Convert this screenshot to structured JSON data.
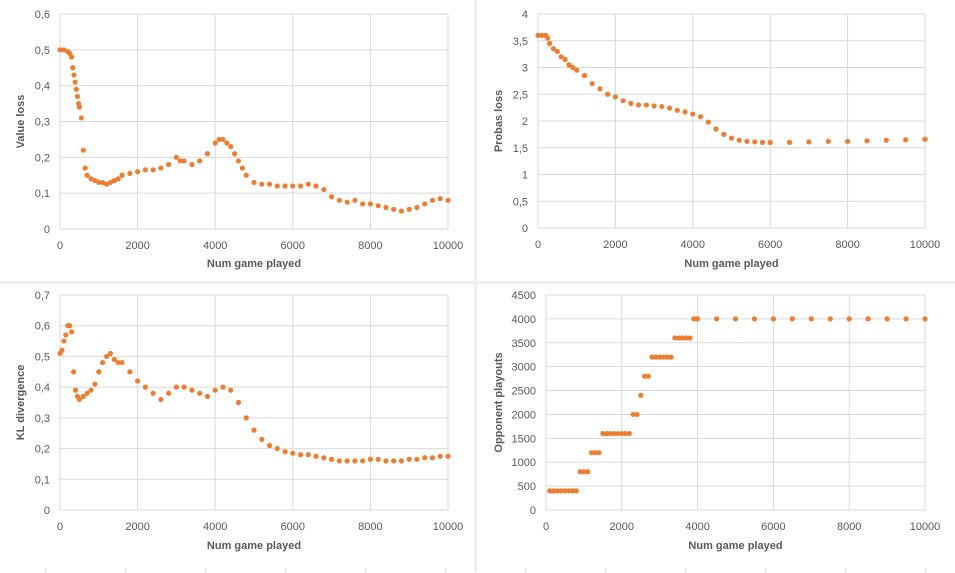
{
  "colors": {
    "marker": "#ED7D31",
    "grid": "#D9D9D9",
    "text": "#595959"
  },
  "chart_data": [
    {
      "type": "scatter",
      "title": "",
      "xlabel": "Num game played",
      "ylabel": "Value loss",
      "xlim": [
        0,
        10000
      ],
      "ylim": [
        0,
        0.6
      ],
      "xticks": [
        0,
        2000,
        4000,
        6000,
        8000,
        10000
      ],
      "xtick_labels": [
        "0",
        "2000",
        "4000",
        "6000",
        "8000",
        "10000"
      ],
      "yticks": [
        0,
        0.1,
        0.2,
        0.3,
        0.4,
        0.5,
        0.6
      ],
      "ytick_labels": [
        "0",
        "0,1",
        "0,2",
        "0,3",
        "0,4",
        "0,5",
        "0,6"
      ],
      "grid": true,
      "points": [
        [
          0,
          0.5
        ],
        [
          100,
          0.5
        ],
        [
          200,
          0.495
        ],
        [
          250,
          0.49
        ],
        [
          300,
          0.48
        ],
        [
          330,
          0.45
        ],
        [
          360,
          0.43
        ],
        [
          390,
          0.41
        ],
        [
          420,
          0.39
        ],
        [
          450,
          0.37
        ],
        [
          480,
          0.35
        ],
        [
          500,
          0.34
        ],
        [
          550,
          0.31
        ],
        [
          600,
          0.22
        ],
        [
          650,
          0.17
        ],
        [
          700,
          0.15
        ],
        [
          800,
          0.14
        ],
        [
          900,
          0.135
        ],
        [
          1000,
          0.13
        ],
        [
          1100,
          0.13
        ],
        [
          1200,
          0.125
        ],
        [
          1300,
          0.13
        ],
        [
          1400,
          0.135
        ],
        [
          1500,
          0.14
        ],
        [
          1600,
          0.15
        ],
        [
          1800,
          0.155
        ],
        [
          2000,
          0.16
        ],
        [
          2200,
          0.165
        ],
        [
          2400,
          0.165
        ],
        [
          2600,
          0.17
        ],
        [
          2800,
          0.18
        ],
        [
          3000,
          0.2
        ],
        [
          3100,
          0.19
        ],
        [
          3200,
          0.19
        ],
        [
          3400,
          0.18
        ],
        [
          3600,
          0.19
        ],
        [
          3800,
          0.21
        ],
        [
          4000,
          0.24
        ],
        [
          4100,
          0.25
        ],
        [
          4200,
          0.25
        ],
        [
          4300,
          0.24
        ],
        [
          4400,
          0.23
        ],
        [
          4500,
          0.21
        ],
        [
          4600,
          0.19
        ],
        [
          4700,
          0.17
        ],
        [
          4800,
          0.15
        ],
        [
          5000,
          0.13
        ],
        [
          5200,
          0.125
        ],
        [
          5400,
          0.125
        ],
        [
          5600,
          0.12
        ],
        [
          5800,
          0.12
        ],
        [
          6000,
          0.12
        ],
        [
          6200,
          0.12
        ],
        [
          6400,
          0.125
        ],
        [
          6600,
          0.12
        ],
        [
          6800,
          0.11
        ],
        [
          7000,
          0.09
        ],
        [
          7200,
          0.08
        ],
        [
          7400,
          0.075
        ],
        [
          7600,
          0.08
        ],
        [
          7800,
          0.07
        ],
        [
          8000,
          0.07
        ],
        [
          8200,
          0.065
        ],
        [
          8400,
          0.06
        ],
        [
          8600,
          0.055
        ],
        [
          8800,
          0.05
        ],
        [
          9000,
          0.055
        ],
        [
          9200,
          0.06
        ],
        [
          9400,
          0.07
        ],
        [
          9600,
          0.08
        ],
        [
          9800,
          0.085
        ],
        [
          10000,
          0.08
        ]
      ]
    },
    {
      "type": "scatter",
      "title": "",
      "xlabel": "Num game played",
      "ylabel": "Probas loss",
      "xlim": [
        0,
        10000
      ],
      "ylim": [
        0,
        4
      ],
      "xticks": [
        0,
        2000,
        4000,
        6000,
        8000,
        10000
      ],
      "xtick_labels": [
        "0",
        "2000",
        "4000",
        "6000",
        "8000",
        "10000"
      ],
      "yticks": [
        0,
        0.5,
        1,
        1.5,
        2,
        2.5,
        3,
        3.5,
        4
      ],
      "ytick_labels": [
        "0",
        "0,5",
        "1",
        "1,5",
        "2",
        "2,5",
        "3",
        "3,5",
        "4"
      ],
      "grid": true,
      "points": [
        [
          0,
          3.6
        ],
        [
          100,
          3.6
        ],
        [
          200,
          3.6
        ],
        [
          250,
          3.55
        ],
        [
          300,
          3.45
        ],
        [
          400,
          3.35
        ],
        [
          500,
          3.3
        ],
        [
          600,
          3.2
        ],
        [
          700,
          3.15
        ],
        [
          800,
          3.05
        ],
        [
          900,
          3.0
        ],
        [
          1000,
          2.95
        ],
        [
          1200,
          2.85
        ],
        [
          1400,
          2.7
        ],
        [
          1600,
          2.6
        ],
        [
          1800,
          2.5
        ],
        [
          2000,
          2.45
        ],
        [
          2200,
          2.38
        ],
        [
          2400,
          2.33
        ],
        [
          2600,
          2.3
        ],
        [
          2800,
          2.3
        ],
        [
          3000,
          2.28
        ],
        [
          3200,
          2.27
        ],
        [
          3400,
          2.24
        ],
        [
          3600,
          2.2
        ],
        [
          3800,
          2.17
        ],
        [
          4000,
          2.13
        ],
        [
          4200,
          2.08
        ],
        [
          4400,
          1.98
        ],
        [
          4600,
          1.85
        ],
        [
          4800,
          1.75
        ],
        [
          5000,
          1.68
        ],
        [
          5200,
          1.64
        ],
        [
          5400,
          1.62
        ],
        [
          5600,
          1.61
        ],
        [
          5800,
          1.6
        ],
        [
          6000,
          1.6
        ],
        [
          6500,
          1.6
        ],
        [
          7000,
          1.61
        ],
        [
          7500,
          1.62
        ],
        [
          8000,
          1.62
        ],
        [
          8500,
          1.63
        ],
        [
          9000,
          1.64
        ],
        [
          9500,
          1.65
        ],
        [
          10000,
          1.66
        ]
      ]
    },
    {
      "type": "scatter",
      "title": "",
      "xlabel": "Num game played",
      "ylabel": "KL divergence",
      "xlim": [
        0,
        10000
      ],
      "ylim": [
        0,
        0.7
      ],
      "xticks": [
        0,
        2000,
        4000,
        6000,
        8000,
        10000
      ],
      "xtick_labels": [
        "0",
        "2000",
        "4000",
        "6000",
        "8000",
        "10000"
      ],
      "yticks": [
        0,
        0.1,
        0.2,
        0.3,
        0.4,
        0.5,
        0.6,
        0.7
      ],
      "ytick_labels": [
        "0",
        "0,1",
        "0,2",
        "0,3",
        "0,4",
        "0,5",
        "0,6",
        "0,7"
      ],
      "grid": true,
      "points": [
        [
          0,
          0.51
        ],
        [
          50,
          0.52
        ],
        [
          100,
          0.55
        ],
        [
          150,
          0.57
        ],
        [
          200,
          0.6
        ],
        [
          250,
          0.6
        ],
        [
          300,
          0.58
        ],
        [
          350,
          0.45
        ],
        [
          400,
          0.39
        ],
        [
          450,
          0.37
        ],
        [
          500,
          0.36
        ],
        [
          600,
          0.37
        ],
        [
          700,
          0.38
        ],
        [
          800,
          0.39
        ],
        [
          900,
          0.41
        ],
        [
          1000,
          0.45
        ],
        [
          1100,
          0.48
        ],
        [
          1200,
          0.5
        ],
        [
          1300,
          0.51
        ],
        [
          1400,
          0.49
        ],
        [
          1500,
          0.48
        ],
        [
          1600,
          0.48
        ],
        [
          1800,
          0.45
        ],
        [
          2000,
          0.42
        ],
        [
          2200,
          0.4
        ],
        [
          2400,
          0.38
        ],
        [
          2600,
          0.36
        ],
        [
          2800,
          0.38
        ],
        [
          3000,
          0.4
        ],
        [
          3200,
          0.4
        ],
        [
          3400,
          0.39
        ],
        [
          3600,
          0.38
        ],
        [
          3800,
          0.37
        ],
        [
          4000,
          0.39
        ],
        [
          4200,
          0.4
        ],
        [
          4400,
          0.39
        ],
        [
          4600,
          0.35
        ],
        [
          4800,
          0.3
        ],
        [
          5000,
          0.26
        ],
        [
          5200,
          0.23
        ],
        [
          5400,
          0.21
        ],
        [
          5600,
          0.2
        ],
        [
          5800,
          0.19
        ],
        [
          6000,
          0.185
        ],
        [
          6200,
          0.18
        ],
        [
          6400,
          0.18
        ],
        [
          6600,
          0.175
        ],
        [
          6800,
          0.17
        ],
        [
          7000,
          0.165
        ],
        [
          7200,
          0.16
        ],
        [
          7400,
          0.16
        ],
        [
          7600,
          0.16
        ],
        [
          7800,
          0.16
        ],
        [
          8000,
          0.165
        ],
        [
          8200,
          0.165
        ],
        [
          8400,
          0.16
        ],
        [
          8600,
          0.16
        ],
        [
          8800,
          0.16
        ],
        [
          9000,
          0.165
        ],
        [
          9200,
          0.165
        ],
        [
          9400,
          0.17
        ],
        [
          9600,
          0.17
        ],
        [
          9800,
          0.175
        ],
        [
          10000,
          0.175
        ]
      ]
    },
    {
      "type": "scatter",
      "title": "",
      "xlabel": "Num game played",
      "ylabel": "Opponent playouts",
      "xlim": [
        0,
        10000
      ],
      "ylim": [
        0,
        4500
      ],
      "xticks": [
        0,
        2000,
        4000,
        6000,
        8000,
        10000
      ],
      "xtick_labels": [
        "0",
        "2000",
        "4000",
        "6000",
        "8000",
        "10000"
      ],
      "yticks": [
        0,
        500,
        1000,
        1500,
        2000,
        2500,
        3000,
        3500,
        4000,
        4500
      ],
      "ytick_labels": [
        "0",
        "500",
        "1000",
        "1500",
        "2000",
        "2500",
        "3000",
        "3500",
        "4000",
        "4500"
      ],
      "grid": true,
      "points": [
        [
          100,
          400
        ],
        [
          200,
          400
        ],
        [
          300,
          400
        ],
        [
          400,
          400
        ],
        [
          500,
          400
        ],
        [
          600,
          400
        ],
        [
          700,
          400
        ],
        [
          800,
          400
        ],
        [
          900,
          800
        ],
        [
          1000,
          800
        ],
        [
          1100,
          800
        ],
        [
          1200,
          1200
        ],
        [
          1300,
          1200
        ],
        [
          1400,
          1200
        ],
        [
          1500,
          1600
        ],
        [
          1600,
          1600
        ],
        [
          1700,
          1600
        ],
        [
          1800,
          1600
        ],
        [
          1900,
          1600
        ],
        [
          2000,
          1600
        ],
        [
          2100,
          1600
        ],
        [
          2200,
          1600
        ],
        [
          2300,
          2000
        ],
        [
          2400,
          2000
        ],
        [
          2500,
          2400
        ],
        [
          2600,
          2800
        ],
        [
          2700,
          2800
        ],
        [
          2800,
          3200
        ],
        [
          2900,
          3200
        ],
        [
          3000,
          3200
        ],
        [
          3100,
          3200
        ],
        [
          3200,
          3200
        ],
        [
          3300,
          3200
        ],
        [
          3400,
          3600
        ],
        [
          3500,
          3600
        ],
        [
          3600,
          3600
        ],
        [
          3700,
          3600
        ],
        [
          3800,
          3600
        ],
        [
          3900,
          4000
        ],
        [
          4000,
          4000
        ],
        [
          4500,
          4000
        ],
        [
          5000,
          4000
        ],
        [
          5500,
          4000
        ],
        [
          6000,
          4000
        ],
        [
          6500,
          4000
        ],
        [
          7000,
          4000
        ],
        [
          7500,
          4000
        ],
        [
          8000,
          4000
        ],
        [
          8500,
          4000
        ],
        [
          9000,
          4000
        ],
        [
          9500,
          4000
        ],
        [
          10000,
          4000
        ]
      ]
    }
  ]
}
